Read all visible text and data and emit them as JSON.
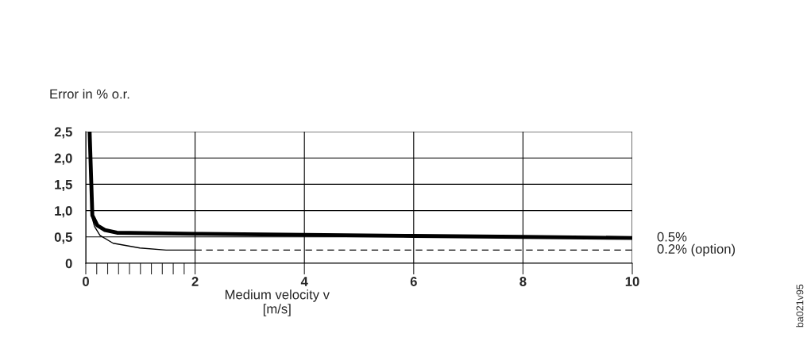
{
  "chart_data": {
    "type": "line",
    "ylabel": "Error in % o.r.",
    "xlabel": "Medium velocity v\n[m/s]",
    "series": [
      {
        "name": "0.5%",
        "color": "#000000",
        "x": [
          0.07,
          0.12,
          0.21,
          0.35,
          0.57,
          2,
          4,
          6,
          8,
          10
        ],
        "values": [
          2.5,
          0.91,
          0.72,
          0.63,
          0.58,
          0.56,
          0.54,
          0.52,
          0.5,
          0.48
        ]
      },
      {
        "color": "#000000",
        "x": [
          0.12,
          0.16,
          0.26,
          0.5,
          0.99,
          1.47,
          2
        ],
        "values": [
          0.85,
          0.7,
          0.53,
          0.38,
          0.29,
          0.25,
          0.25
        ]
      },
      {
        "name": "0.2% (option)",
        "color": "#000000",
        "x": [
          2,
          10
        ],
        "values": [
          0.25,
          0.25
        ],
        "line_style": "dashed"
      }
    ],
    "xlim": [
      0,
      10
    ],
    "xticks": [
      0,
      {
        "value": 0.2,
        "label": null
      },
      {
        "value": 0.4,
        "label": null
      },
      {
        "value": 0.6,
        "label": null
      },
      {
        "value": 0.8,
        "label": null
      },
      {
        "value": 1,
        "label": null
      },
      {
        "value": 1.2,
        "label": null
      },
      {
        "value": 1.4,
        "label": null
      },
      {
        "value": 1.6,
        "label": null
      },
      {
        "value": 1.8,
        "label": null
      },
      2,
      4,
      6,
      8,
      10
    ],
    "ylim": [
      0,
      2.5
    ],
    "yticks": [
      0,
      {
        "value": 0.5,
        "label": "0,5"
      },
      {
        "value": 1,
        "label": "1,0"
      },
      {
        "value": 1.5,
        "label": "1,5"
      },
      {
        "value": 2,
        "label": "2,0"
      },
      {
        "value": 2.5,
        "label": "2,5"
      }
    ],
    "grid": true,
    "annotations": [
      "ba021v95"
    ]
  }
}
